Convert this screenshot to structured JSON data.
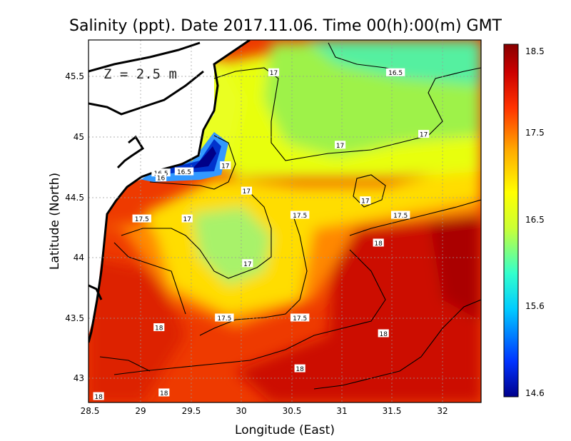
{
  "title": "Salinity (ppt). Date 2017.11.06. Time 00(h):00(m) GMT",
  "depth_label": "Z = 2.5 m",
  "x_axis": {
    "label": "Longitude (East)",
    "range": [
      28.5,
      32.4
    ],
    "ticks": [
      "28.5",
      "29",
      "29.5",
      "30",
      "30.5",
      "31",
      "31.5",
      "32"
    ]
  },
  "y_axis": {
    "label": "Latitude (North)",
    "range": [
      42.8,
      45.8
    ],
    "ticks": [
      "43",
      "43.5",
      "44",
      "44.5",
      "45",
      "45.5"
    ]
  },
  "colorbar": {
    "ticks": [
      "18.5",
      "17.5",
      "16.5",
      "15.6",
      "14.6"
    ],
    "min": 14.6,
    "max": 18.5,
    "colors": [
      "#00008c",
      "#0033ff",
      "#00ccff",
      "#33ffcc",
      "#ccff33",
      "#ffff00",
      "#ffaa00",
      "#ff3300",
      "#cc0000",
      "#880000"
    ]
  },
  "contour_labels": [
    {
      "text": "17",
      "lon": 30.34,
      "lat": 45.53
    },
    {
      "text": "16.5",
      "lon": 31.55,
      "lat": 45.53
    },
    {
      "text": "17",
      "lon": 31.83,
      "lat": 45.02
    },
    {
      "text": "17",
      "lon": 31.0,
      "lat": 44.93
    },
    {
      "text": "17",
      "lon": 29.86,
      "lat": 44.76
    },
    {
      "text": "16.5",
      "lon": 29.45,
      "lat": 44.71
    },
    {
      "text": "16.5",
      "lon": 29.22,
      "lat": 44.7
    },
    {
      "text": "16",
      "lon": 29.22,
      "lat": 44.66
    },
    {
      "text": "17",
      "lon": 30.07,
      "lat": 44.55
    },
    {
      "text": "17",
      "lon": 31.25,
      "lat": 44.47
    },
    {
      "text": "17.5",
      "lon": 30.6,
      "lat": 44.35
    },
    {
      "text": "17.5",
      "lon": 31.6,
      "lat": 44.35
    },
    {
      "text": "17.5",
      "lon": 29.03,
      "lat": 44.32
    },
    {
      "text": "17",
      "lon": 29.48,
      "lat": 44.32
    },
    {
      "text": "18",
      "lon": 31.38,
      "lat": 44.12
    },
    {
      "text": "17",
      "lon": 30.08,
      "lat": 43.95
    },
    {
      "text": "17.5",
      "lon": 29.85,
      "lat": 43.5
    },
    {
      "text": "17.5",
      "lon": 30.6,
      "lat": 43.5
    },
    {
      "text": "18",
      "lon": 29.2,
      "lat": 43.42
    },
    {
      "text": "18",
      "lon": 31.43,
      "lat": 43.37
    },
    {
      "text": "18",
      "lon": 30.6,
      "lat": 43.08
    },
    {
      "text": "18",
      "lon": 28.6,
      "lat": 42.85
    },
    {
      "text": "18",
      "lon": 29.25,
      "lat": 42.88
    }
  ]
}
